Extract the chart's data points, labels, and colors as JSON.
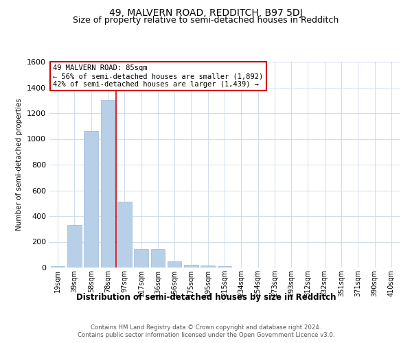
{
  "title": "49, MALVERN ROAD, REDDITCH, B97 5DJ",
  "subtitle": "Size of property relative to semi-detached houses in Redditch",
  "xlabel": "Distribution of semi-detached houses by size in Redditch",
  "ylabel": "Number of semi-detached properties",
  "categories": [
    "19sqm",
    "39sqm",
    "58sqm",
    "78sqm",
    "97sqm",
    "117sqm",
    "136sqm",
    "156sqm",
    "175sqm",
    "195sqm",
    "215sqm",
    "234sqm",
    "254sqm",
    "273sqm",
    "293sqm",
    "312sqm",
    "332sqm",
    "351sqm",
    "371sqm",
    "390sqm",
    "410sqm"
  ],
  "values": [
    10,
    330,
    1060,
    1300,
    510,
    145,
    145,
    50,
    20,
    15,
    10,
    0,
    0,
    0,
    0,
    0,
    0,
    0,
    0,
    0,
    0
  ],
  "bar_color": "#b8cfe8",
  "bar_edge_color": "#9ab8d8",
  "red_line_x": 3.5,
  "annotation_title": "49 MALVERN ROAD: 85sqm",
  "annotation_line1": "← 56% of semi-detached houses are smaller (1,892)",
  "annotation_line2": "42% of semi-detached houses are larger (1,439) →",
  "ylim": [
    0,
    1600
  ],
  "yticks": [
    0,
    200,
    400,
    600,
    800,
    1000,
    1200,
    1400,
    1600
  ],
  "footnote1": "Contains HM Land Registry data © Crown copyright and database right 2024.",
  "footnote2": "Contains public sector information licensed under the Open Government Licence v3.0.",
  "grid_color": "#c8d8e8",
  "title_fontsize": 10,
  "subtitle_fontsize": 9,
  "annotation_box_color": "#ffffff",
  "annotation_border_color": "#cc0000",
  "bg_color": "#ffffff"
}
